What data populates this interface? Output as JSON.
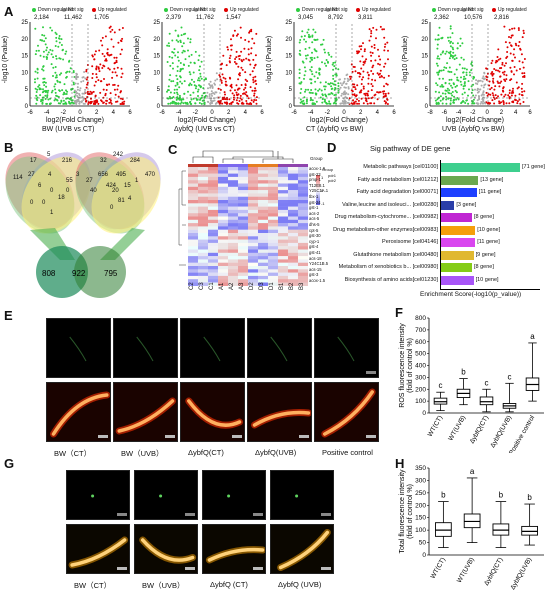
{
  "panels": {
    "A": "A",
    "B": "B",
    "C": "C",
    "D": "D",
    "E": "E",
    "F": "F",
    "G": "G",
    "H": "H"
  },
  "volcano": [
    {
      "legend": [
        "Down regulated",
        "Not sig",
        "Up regulated"
      ],
      "counts": [
        "2,184",
        "11,462",
        "1,705"
      ],
      "title": "BW (UVB vs CT)",
      "xticks": [
        "-6",
        "-4",
        "-2",
        "0",
        "2",
        "4",
        "6"
      ]
    },
    {
      "legend": [
        "Down regulated",
        "Not sig",
        "Up regulated"
      ],
      "counts": [
        "2,379",
        "11,762",
        "1,547"
      ],
      "title": "ΔybfQ (UVB vs CT)",
      "xticks": [
        "-6",
        "-4",
        "-2",
        "0",
        "2",
        "4",
        "6"
      ]
    },
    {
      "legend": [
        "Down regulated",
        "Not sig",
        "Up regulated"
      ],
      "counts": [
        "3,045",
        "8,792",
        "3,811"
      ],
      "title": "CT (ΔybfQ vs BW)",
      "xticks": [
        "-6",
        "-4",
        "-2",
        "0",
        "2",
        "4",
        "6"
      ]
    },
    {
      "legend": [
        "Down regulated",
        "Not sig",
        "Up regulated"
      ],
      "counts": [
        "2,362",
        "10,576",
        "2,816"
      ],
      "title": "UVB (ΔybfQ vs BW)",
      "xticks": [
        "-8",
        "-6",
        "-4",
        "-2",
        "0",
        "2",
        "4",
        "6"
      ]
    }
  ],
  "volcano_ylabel": "-log10 (Pvalue)",
  "volcano_xlabel": "log2(Fold Change)",
  "volcano_yticks": [
    "0",
    "5",
    "10",
    "15",
    "20",
    "25"
  ],
  "venn": {
    "left": [
      "17",
      "5",
      "216",
      "114",
      "27",
      "4",
      "55",
      "3",
      "6",
      "0",
      "0",
      "18",
      "0",
      "1",
      "0"
    ],
    "right": [
      "32",
      "242",
      "284",
      "470",
      "656",
      "495",
      "424",
      "40",
      "20",
      "15",
      "1",
      "27",
      "81",
      "0",
      "4"
    ],
    "bottom": [
      "808",
      "922",
      "795"
    ]
  },
  "heatmap": {
    "group_label": "Group",
    "group_label2": "Group",
    "group_items": [
      "pdr1",
      "pdr2"
    ],
    "gene_labels": [
      "acox-1.6",
      "gst-23",
      "pmp-1",
      "T12E8.1",
      "Y25C1A.1",
      "tbx-1",
      "gst-24",
      "gst-1",
      "acs-2",
      "acs-5",
      "dhs-5",
      "cpt-5",
      "gst-30",
      "cyp-1",
      "gst-4",
      "gst-41",
      "acs-18",
      "Y24C1B.5",
      "acs-15",
      "gst-3",
      "acox-1.5"
    ],
    "sample_labels": [
      "C2",
      "C3",
      "C1",
      "A1",
      "A2",
      "A3",
      "D2",
      "D3",
      "D1",
      "B1",
      "B2",
      "B3"
    ],
    "scale": [
      "1",
      "0",
      "-1"
    ]
  },
  "pathway": {
    "title": "Sig pathway of DE gene",
    "xlabel": "Enrichment Score(-log10(p_value))",
    "rows": [
      {
        "name": "Metabolic pathways [cel01100]",
        "genes": "[71 gene]",
        "value": 1.0,
        "color": "#3ecf8e"
      },
      {
        "name": "Fatty acid metabolism [cel01212]",
        "genes": "[13 gene]",
        "value": 0.48,
        "color": "#6aa84f"
      },
      {
        "name": "Fatty acid degradation [cel00071]",
        "genes": "[11 gene]",
        "value": 0.46,
        "color": "#1e40ff"
      },
      {
        "name": "Valine,leucine and isoleuci... [cel00280]",
        "genes": "[3 gene]",
        "value": 0.18,
        "color": "#2a3ea8"
      },
      {
        "name": "Drug metabolism-cytochrome... [cel00982]",
        "genes": "[8 gene]",
        "value": 0.4,
        "color": "#c026d3"
      },
      {
        "name": "Drug metabolism-other enzymes[cel00983]",
        "genes": "[10 gene]",
        "value": 0.44,
        "color": "#f59e0b"
      },
      {
        "name": "Peroxisome [cel04146]",
        "genes": "[11 gene]",
        "value": 0.44,
        "color": "#d946ef"
      },
      {
        "name": "Glutathione metabolism [cel00480]",
        "genes": "[9 gene]",
        "value": 0.42,
        "color": "#e0b830"
      },
      {
        "name": "Metabolism of xenobiotics b... [cel00980]",
        "genes": "[8 gene]",
        "value": 0.4,
        "color": "#84cc16"
      },
      {
        "name": "Biosynthesis of amino acids[cel01230]",
        "genes": "[10 gene]",
        "value": 0.42,
        "color": "#a855f7"
      }
    ]
  },
  "E_labels": [
    "BW（CT）",
    "BW（UVB）",
    "ΔybfQ(CT)",
    "ΔybfQ(UVB)",
    "Positive control"
  ],
  "G_labels": [
    "BW（CT）",
    "BW（UVB）",
    "ΔybfQ (CT)",
    "ΔybfQ (UVB)"
  ],
  "chart_data": [
    {
      "type": "box",
      "ylabel": "ROS fluorescence intensity (fold of control %)",
      "ylim": [
        0,
        800
      ],
      "yticks": [
        "0",
        "100",
        "200",
        "300",
        "400",
        "500",
        "600",
        "700",
        "800"
      ],
      "categories": [
        "WT(CT)",
        "WT(UVB)",
        "ΔybfQ(CT)",
        "ΔybfQ(UVB)",
        "Positive control"
      ],
      "letters": [
        "c",
        "b",
        "c",
        "c",
        "a"
      ],
      "boxes": [
        {
          "min": 20,
          "q1": 75,
          "median": 95,
          "q3": 125,
          "max": 175
        },
        {
          "min": 70,
          "q1": 130,
          "median": 165,
          "q3": 200,
          "max": 290
        },
        {
          "min": 10,
          "q1": 70,
          "median": 95,
          "q3": 135,
          "max": 200
        },
        {
          "min": 10,
          "q1": 40,
          "median": 60,
          "q3": 80,
          "max": 250
        },
        {
          "min": 100,
          "q1": 190,
          "median": 240,
          "q3": 295,
          "max": 590
        }
      ]
    },
    {
      "type": "box",
      "ylabel": "Total fluorescence intensity (fold of control %)",
      "ylim": [
        0,
        350
      ],
      "yticks": [
        "0",
        "50",
        "100",
        "150",
        "200",
        "250",
        "300",
        "350"
      ],
      "categories": [
        "WT(CT)",
        "WT(UVB)",
        "ΔybfQ(CT)",
        "ΔybfQ(UVB)"
      ],
      "letters": [
        "b",
        "a",
        "b",
        "b"
      ],
      "boxes": [
        {
          "min": 30,
          "q1": 75,
          "median": 100,
          "q3": 130,
          "max": 215
        },
        {
          "min": 50,
          "q1": 110,
          "median": 135,
          "q3": 165,
          "max": 310
        },
        {
          "min": 30,
          "q1": 80,
          "median": 100,
          "q3": 125,
          "max": 215
        },
        {
          "min": 40,
          "q1": 80,
          "median": 95,
          "q3": 115,
          "max": 205
        }
      ]
    }
  ]
}
